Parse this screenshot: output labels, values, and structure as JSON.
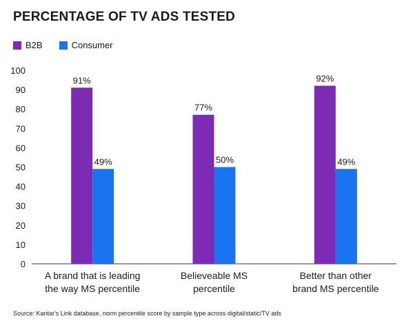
{
  "title": "PERCENTAGE OF TV ADS TESTED",
  "source": "Source: Kantar's Link database, norm percentile score by sample type across digital/static/TV ads",
  "chart_data": {
    "type": "bar",
    "title": "PERCENTAGE OF TV ADS TESTED",
    "categories": [
      [
        "A brand that is leading",
        "the way MS percentile"
      ],
      [
        "Believeable MS",
        "percentile"
      ],
      [
        "Better than other",
        "brand MS percentile"
      ]
    ],
    "series": [
      {
        "name": "B2B",
        "color": "#7d2ab5",
        "values": [
          91,
          77,
          92
        ],
        "labels": [
          "91%",
          "77%",
          "92%"
        ]
      },
      {
        "name": "Consumer",
        "color": "#1a74f0",
        "values": [
          49,
          50,
          49
        ],
        "labels": [
          "49%",
          "50%",
          "49%"
        ]
      }
    ],
    "ylim": [
      0,
      100
    ],
    "yticks": [
      0,
      10,
      20,
      30,
      40,
      50,
      60,
      70,
      80,
      90,
      100
    ],
    "legend": "top-left",
    "grid": false
  }
}
